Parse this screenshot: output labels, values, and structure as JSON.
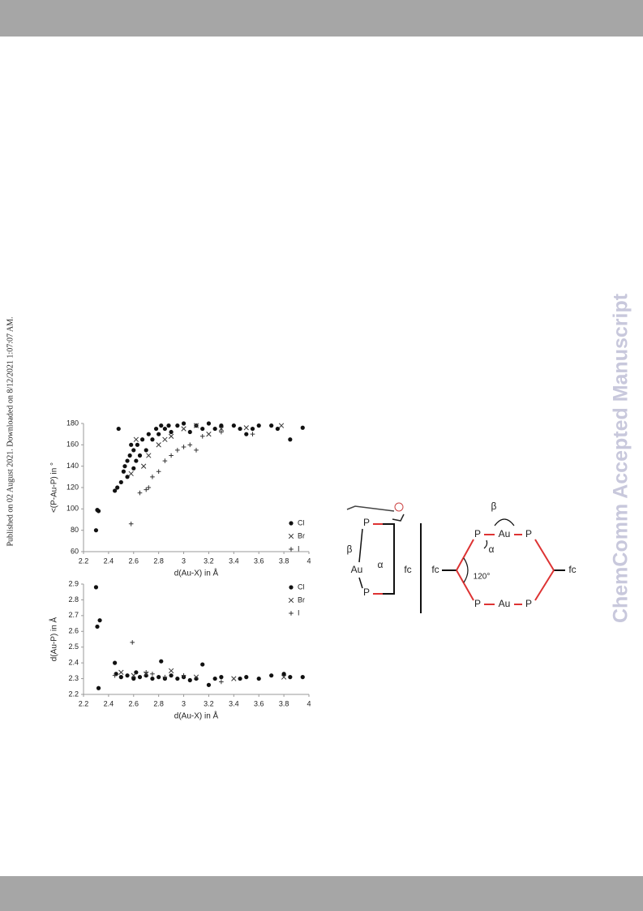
{
  "side_note": "Published on 02 August 2021. Downloaded on 8/12/2021 1:07:07 AM.",
  "watermark": "ChemComm Accepted Manuscript",
  "chart_data": [
    {
      "type": "scatter",
      "x_label": "d(Au-X) in Å",
      "y_label": "<(P-Au-P) in °",
      "xlim": [
        2.2,
        4
      ],
      "xticks": [
        2.2,
        2.4,
        2.6,
        2.8,
        3,
        3.2,
        3.4,
        3.6,
        3.8,
        4
      ],
      "ylim": [
        60,
        180
      ],
      "yticks": [
        60,
        80,
        100,
        120,
        140,
        160,
        180
      ],
      "legend": "lower right",
      "series": [
        {
          "name": "Cl",
          "color": "#111111",
          "marker": "circle",
          "x": [
            2.3,
            2.31,
            2.32,
            2.45,
            2.47,
            2.48,
            2.5,
            2.52,
            2.53,
            2.55,
            2.55,
            2.57,
            2.58,
            2.6,
            2.6,
            2.62,
            2.63,
            2.65,
            2.67,
            2.7,
            2.72,
            2.75,
            2.78,
            2.8,
            2.82,
            2.85,
            2.88,
            2.9,
            2.95,
            3.0,
            3.05,
            3.1,
            3.15,
            3.2,
            3.25,
            3.3,
            3.4,
            3.45,
            3.5,
            3.55,
            3.6,
            3.7,
            3.75,
            3.85,
            3.95
          ],
          "values": [
            80,
            99,
            98,
            117,
            120,
            175,
            125,
            135,
            140,
            130,
            145,
            150,
            160,
            138,
            155,
            145,
            160,
            150,
            165,
            155,
            170,
            165,
            175,
            170,
            178,
            175,
            178,
            172,
            178,
            180,
            172,
            178,
            175,
            180,
            175,
            178,
            178,
            175,
            170,
            175,
            178,
            178,
            175,
            165,
            176
          ]
        },
        {
          "name": "Br",
          "color": "#333333",
          "marker": "x",
          "x": [
            2.58,
            2.62,
            2.68,
            2.72,
            2.8,
            2.85,
            2.9,
            3.0,
            3.1,
            3.2,
            3.3,
            3.5,
            3.78
          ],
          "values": [
            133,
            165,
            140,
            150,
            160,
            165,
            168,
            175,
            178,
            170,
            175,
            176,
            178
          ]
        },
        {
          "name": "I",
          "color": "#333333",
          "marker": "plus",
          "x": [
            2.58,
            2.65,
            2.7,
            2.72,
            2.75,
            2.8,
            2.85,
            2.9,
            2.95,
            3.0,
            3.05,
            3.1,
            3.15,
            3.3,
            3.55
          ],
          "values": [
            86,
            115,
            118,
            120,
            130,
            135,
            145,
            150,
            155,
            158,
            160,
            155,
            168,
            172,
            170
          ]
        }
      ]
    },
    {
      "type": "scatter",
      "x_label": "d(Au-X) in Å",
      "y_label": "d(Au-P) in Å",
      "xlim": [
        2.2,
        4
      ],
      "xticks": [
        2.2,
        2.4,
        2.6,
        2.8,
        3,
        3.2,
        3.4,
        3.6,
        3.8,
        4
      ],
      "ylim": [
        2.2,
        2.9
      ],
      "yticks": [
        2.2,
        2.3,
        2.4,
        2.5,
        2.6,
        2.7,
        2.8,
        2.9
      ],
      "legend": "upper right",
      "series": [
        {
          "name": "Cl",
          "color": "#111111",
          "marker": "circle",
          "x": [
            2.3,
            2.31,
            2.32,
            2.33,
            2.45,
            2.46,
            2.5,
            2.55,
            2.6,
            2.62,
            2.65,
            2.7,
            2.75,
            2.8,
            2.82,
            2.85,
            2.9,
            2.95,
            3.0,
            3.05,
            3.1,
            3.15,
            3.2,
            3.25,
            3.3,
            3.45,
            3.5,
            3.6,
            3.7,
            3.8,
            3.85,
            3.95
          ],
          "values": [
            2.88,
            2.63,
            2.24,
            2.67,
            2.4,
            2.33,
            2.31,
            2.32,
            2.3,
            2.34,
            2.31,
            2.32,
            2.3,
            2.31,
            2.41,
            2.3,
            2.32,
            2.3,
            2.31,
            2.29,
            2.3,
            2.39,
            2.26,
            2.3,
            2.31,
            2.3,
            2.31,
            2.3,
            2.32,
            2.33,
            2.31,
            2.31
          ]
        },
        {
          "name": "Br",
          "color": "#333333",
          "marker": "x",
          "x": [
            2.5,
            2.6,
            2.7,
            2.9,
            3.1,
            3.4,
            3.8
          ],
          "values": [
            2.34,
            2.32,
            2.33,
            2.35,
            2.31,
            2.3,
            2.31
          ]
        },
        {
          "name": "I",
          "color": "#333333",
          "marker": "plus",
          "x": [
            2.45,
            2.59,
            2.7,
            2.75,
            2.85,
            3.0,
            3.3
          ],
          "values": [
            2.32,
            2.53,
            2.34,
            2.33,
            2.31,
            2.32,
            2.28
          ]
        }
      ]
    }
  ],
  "diagram": {
    "labels": [
      "P",
      "Au",
      "P",
      "fc",
      "β",
      "α",
      "P",
      "Au",
      "P",
      "fc",
      "fc",
      "P",
      "Au",
      "P",
      "β",
      "α",
      "120°"
    ]
  }
}
